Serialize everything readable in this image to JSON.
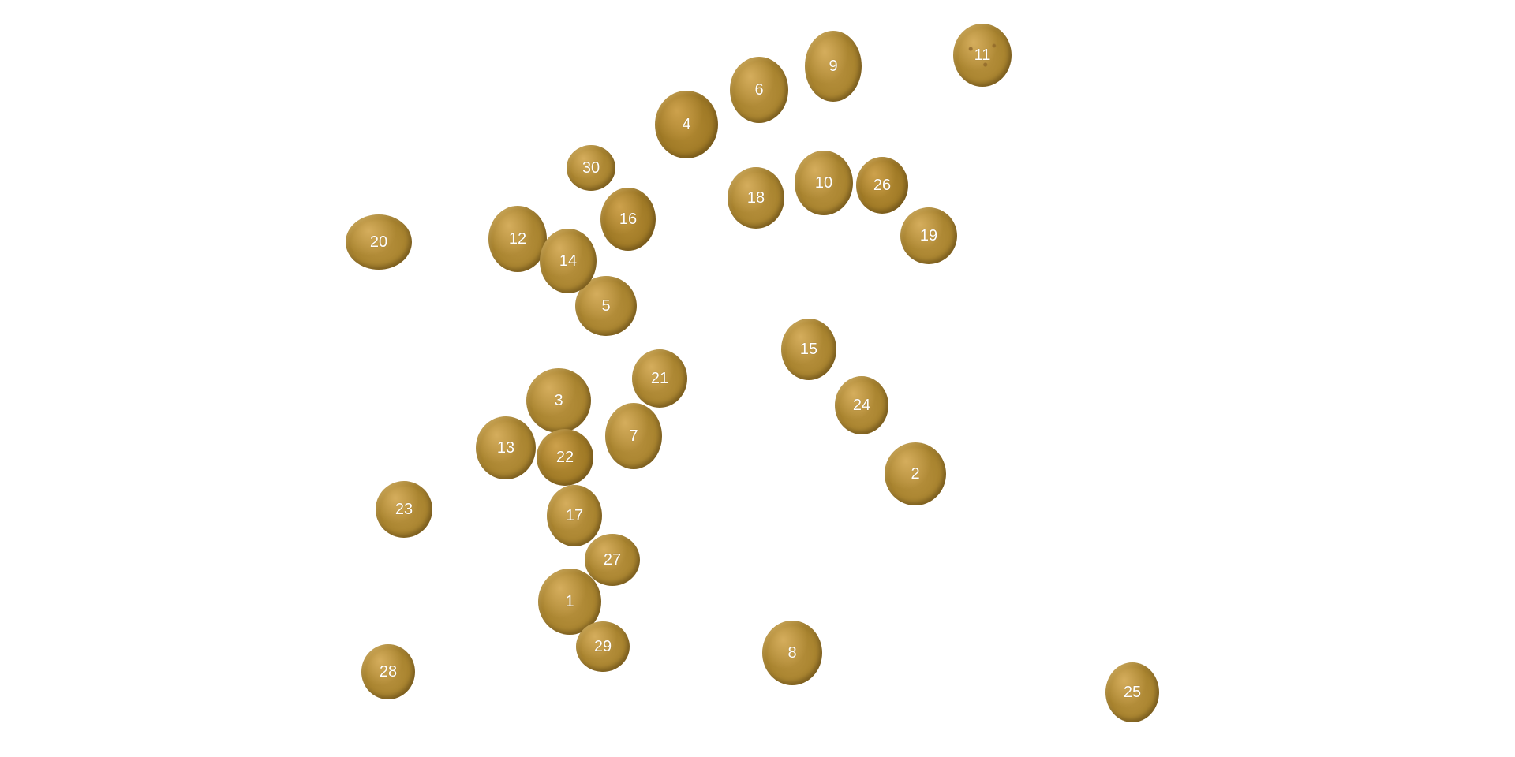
{
  "seeds": [
    {
      "label": "1"
    },
    {
      "label": "2"
    },
    {
      "label": "3"
    },
    {
      "label": "4"
    },
    {
      "label": "5"
    },
    {
      "label": "6"
    },
    {
      "label": "7"
    },
    {
      "label": "8"
    },
    {
      "label": "9"
    },
    {
      "label": "10"
    },
    {
      "label": "11"
    },
    {
      "label": "12"
    },
    {
      "label": "13"
    },
    {
      "label": "14"
    },
    {
      "label": "15"
    },
    {
      "label": "16"
    },
    {
      "label": "17"
    },
    {
      "label": "18"
    },
    {
      "label": "19"
    },
    {
      "label": "20"
    },
    {
      "label": "21"
    },
    {
      "label": "22"
    },
    {
      "label": "23"
    },
    {
      "label": "24"
    },
    {
      "label": "25"
    },
    {
      "label": "26"
    },
    {
      "label": "27"
    },
    {
      "label": "28"
    },
    {
      "label": "29"
    },
    {
      "label": "30"
    }
  ],
  "colors": {
    "background": "#ffffff",
    "seed": "#a9842f",
    "label": "#ffffff"
  }
}
